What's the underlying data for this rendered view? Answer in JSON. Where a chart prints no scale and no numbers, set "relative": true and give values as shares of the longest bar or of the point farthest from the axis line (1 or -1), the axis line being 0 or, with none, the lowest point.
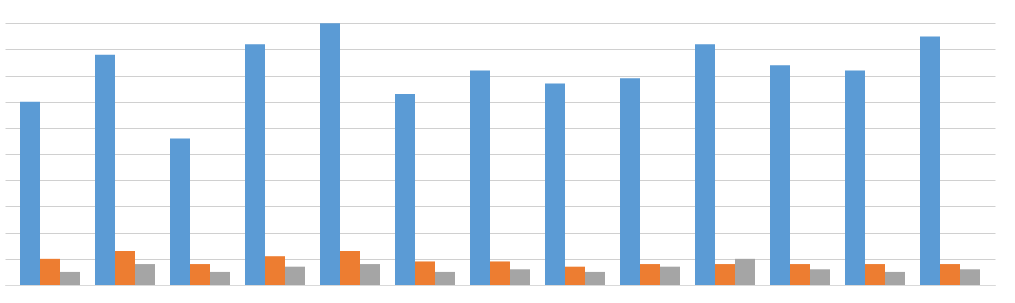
{
  "chart_data": {
    "type": "bar",
    "relative": true,
    "grid": "y",
    "legend": false,
    "categories": [
      null,
      null,
      null,
      null,
      null,
      null,
      null,
      null,
      null,
      null,
      null,
      null,
      null
    ],
    "series": [
      {
        "color": "#5b9bd5",
        "values": [
          0.7,
          0.88,
          0.56,
          0.92,
          1.0,
          0.73,
          0.82,
          0.77,
          0.79,
          0.92,
          0.84,
          0.82,
          0.95
        ]
      },
      {
        "color": "#ed7d31",
        "values": [
          0.1,
          0.13,
          0.08,
          0.11,
          0.13,
          0.09,
          0.09,
          0.07,
          0.08,
          0.08,
          0.08,
          0.08,
          0.08
        ]
      },
      {
        "color": "#a5a5a5",
        "values": [
          0.05,
          0.08,
          0.05,
          0.07,
          0.08,
          0.05,
          0.06,
          0.05,
          0.07,
          0.1,
          0.06,
          0.05,
          0.06
        ]
      }
    ]
  }
}
